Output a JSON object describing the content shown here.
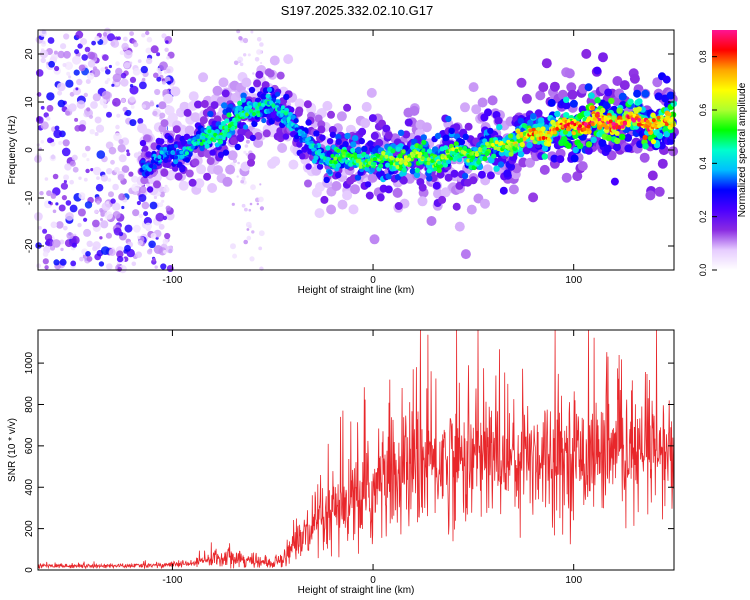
{
  "title": "S197.2025.332.02.10.G17",
  "chart_data": [
    {
      "type": "heatmap",
      "name": "spectrogram",
      "xlabel": "Height of straight line (km)",
      "ylabel": "Frequency (Hz)",
      "xlim": [
        -167,
        150
      ],
      "ylim": [
        -25,
        25
      ],
      "xticks": [
        -100,
        0,
        100
      ],
      "yticks": [
        -20,
        -10,
        0,
        10,
        20
      ],
      "colorbar": {
        "label": "Normalized spectral amplitude",
        "range": [
          0.0,
          0.9
        ],
        "ticks": [
          0.0,
          0.2,
          0.4,
          0.6,
          0.8
        ],
        "colormap": [
          "#ffffff",
          "#e6ccff",
          "#8a2be2",
          "#4b00ff",
          "#0000ff",
          "#00bfff",
          "#00ffcc",
          "#00ff00",
          "#adff2f",
          "#ffff00",
          "#ffa500",
          "#ff0000",
          "#ff1493"
        ]
      },
      "ridge": {
        "x": [
          -115,
          -100,
          -90,
          -80,
          -70,
          -62,
          -55,
          -48,
          -42,
          -38,
          -34,
          -30,
          -26,
          -22,
          -16,
          -10,
          -4,
          0,
          10,
          20,
          30,
          40,
          50,
          60,
          70,
          80,
          90,
          100,
          110,
          120,
          130,
          140,
          150
        ],
        "y": [
          -3,
          -1,
          1,
          3,
          5,
          8,
          10,
          8,
          7,
          5,
          2,
          0,
          -1,
          -2,
          -1.5,
          -2,
          -2,
          -2.5,
          -2,
          -1.5,
          -2,
          -1,
          -0.5,
          0.5,
          2,
          3,
          4,
          5,
          5.8,
          6,
          6,
          5.8,
          5.5
        ],
        "amplitude": [
          0.35,
          0.4,
          0.45,
          0.5,
          0.55,
          0.5,
          0.45,
          0.45,
          0.45,
          0.4,
          0.4,
          0.45,
          0.45,
          0.5,
          0.55,
          0.55,
          0.55,
          0.55,
          0.6,
          0.6,
          0.6,
          0.6,
          0.6,
          0.62,
          0.7,
          0.75,
          0.8,
          0.82,
          0.85,
          0.88,
          0.88,
          0.85,
          0.8
        ]
      },
      "noise_region_x": [
        -167,
        -100
      ],
      "noise_band_x": [
        -70,
        -55
      ]
    },
    {
      "type": "line",
      "name": "snr",
      "xlabel": "Height of straight line (km)",
      "ylabel": "SNR (10 * v/v)",
      "xlim": [
        -167,
        150
      ],
      "ylim": [
        0,
        1160
      ],
      "xticks": [
        -100,
        0,
        100
      ],
      "yticks": [
        0,
        200,
        400,
        600,
        800,
        1000
      ],
      "color": "#e8272b",
      "envelope": {
        "x": [
          -167,
          -120,
          -90,
          -80,
          -70,
          -60,
          -50,
          -45,
          -40,
          -35,
          -30,
          -25,
          -20,
          -10,
          0,
          10,
          20,
          30,
          40,
          50,
          60,
          70,
          80,
          90,
          100,
          110,
          120,
          130,
          140,
          150
        ],
        "mean": [
          20,
          20,
          30,
          55,
          70,
          40,
          30,
          60,
          120,
          160,
          180,
          220,
          260,
          320,
          380,
          450,
          500,
          520,
          530,
          540,
          550,
          550,
          560,
          560,
          560,
          560,
          560,
          550,
          560,
          560
        ],
        "spread": [
          12,
          12,
          20,
          45,
          60,
          30,
          20,
          50,
          100,
          130,
          170,
          200,
          230,
          260,
          300,
          320,
          340,
          360,
          340,
          360,
          340,
          320,
          340,
          330,
          320,
          300,
          280,
          280,
          320,
          330
        ]
      }
    }
  ]
}
